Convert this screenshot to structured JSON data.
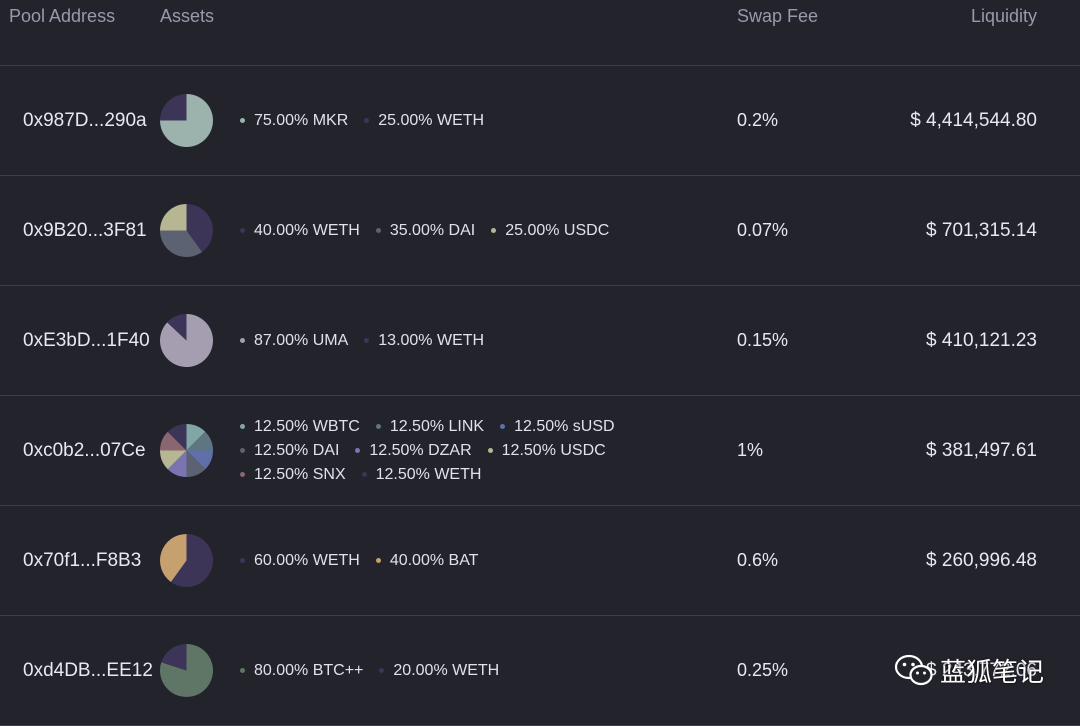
{
  "header": {
    "pool_address": "Pool Address",
    "assets": "Assets",
    "swap_fee": "Swap Fee",
    "liquidity": "Liquidity"
  },
  "colors": {
    "background": "#23232c",
    "divider": "#3d3d4c",
    "header_text": "#9a99ab"
  },
  "pools": [
    {
      "address": "0x987D...290a",
      "assets": [
        {
          "label": "75.00% MKR",
          "weight": 75,
          "color": "#9bb2ad"
        },
        {
          "label": "25.00% WETH",
          "weight": 25,
          "color": "#3c3557"
        }
      ],
      "fee": "0.2%",
      "liquidity": "$ 4,414,544.80"
    },
    {
      "address": "0x9B20...3F81",
      "assets": [
        {
          "label": "40.00% WETH",
          "weight": 40,
          "color": "#3c3557"
        },
        {
          "label": "35.00% DAI",
          "weight": 35,
          "color": "#5c6272"
        },
        {
          "label": "25.00% USDC",
          "weight": 25,
          "color": "#b7b693"
        }
      ],
      "fee": "0.07%",
      "liquidity": "$ 701,315.14"
    },
    {
      "address": "0xE3bD...1F40",
      "assets": [
        {
          "label": "87.00% UMA",
          "weight": 87,
          "color": "#a59eb0"
        },
        {
          "label": "13.00% WETH",
          "weight": 13,
          "color": "#3c3557"
        }
      ],
      "fee": "0.15%",
      "liquidity": "$ 410,121.23"
    },
    {
      "address": "0xc0b2...07Ce",
      "assets": [
        {
          "label": "12.50% WBTC",
          "weight": 12.5,
          "color": "#80a7a6"
        },
        {
          "label": "12.50% LINK",
          "weight": 12.5,
          "color": "#5e7582"
        },
        {
          "label": "12.50% sUSD",
          "weight": 12.5,
          "color": "#5e6faa"
        },
        {
          "label": "12.50% DAI",
          "weight": 12.5,
          "color": "#5c6272"
        },
        {
          "label": "12.50% DZAR",
          "weight": 12.5,
          "color": "#7a74b0"
        },
        {
          "label": "12.50% USDC",
          "weight": 12.5,
          "color": "#b7b693"
        },
        {
          "label": "12.50% SNX",
          "weight": 12.5,
          "color": "#8a6670"
        },
        {
          "label": "12.50% WETH",
          "weight": 12.5,
          "color": "#3c3557"
        }
      ],
      "fee": "1%",
      "liquidity": "$ 381,497.61"
    },
    {
      "address": "0x70f1...F8B3",
      "assets": [
        {
          "label": "60.00% WETH",
          "weight": 60,
          "color": "#3c3557"
        },
        {
          "label": "40.00% BAT",
          "weight": 40,
          "color": "#c6a06e"
        }
      ],
      "fee": "0.6%",
      "liquidity": "$ 260,996.48"
    },
    {
      "address": "0xd4DB...EE12",
      "assets": [
        {
          "label": "80.00% BTC++",
          "weight": 80,
          "color": "#5f7565"
        },
        {
          "label": "20.00% WETH",
          "weight": 20,
          "color": "#3c3557"
        }
      ],
      "fee": "0.25%",
      "liquidity": "$ 243,772.06"
    }
  ],
  "watermark": {
    "text": "蓝狐笔记",
    "icon": "wechat-icon"
  }
}
